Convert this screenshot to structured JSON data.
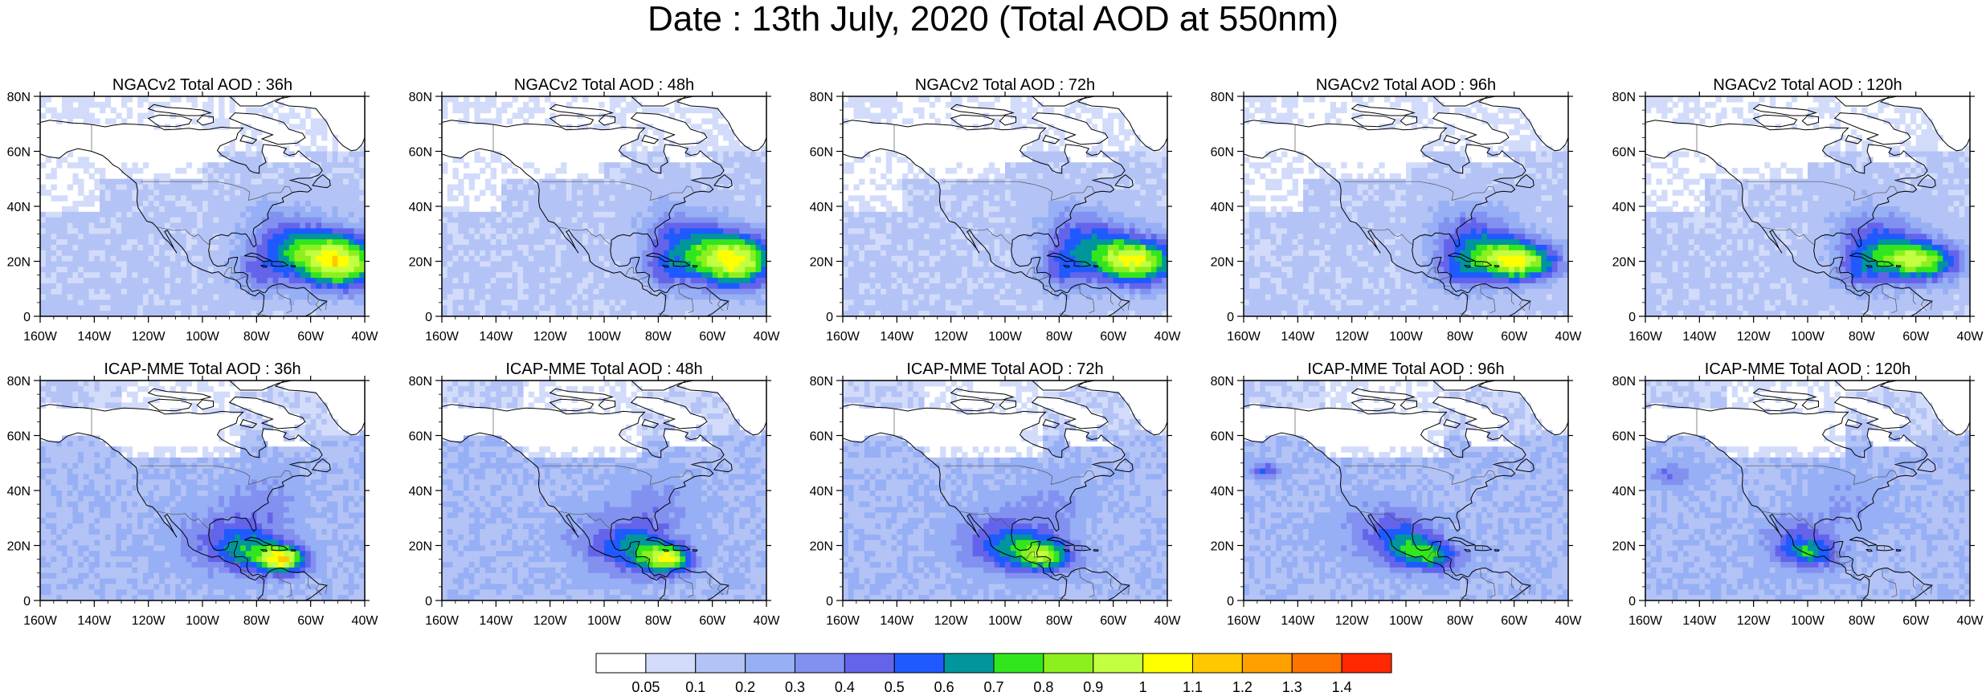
{
  "title": "Date : 13th July, 2020 (Total AOD at 550nm)",
  "axes": {
    "lon_ticks": [
      "160W",
      "140W",
      "120W",
      "100W",
      "80W",
      "60W",
      "40W"
    ],
    "lat_ticks": [
      "0",
      "20N",
      "40N",
      "60N",
      "80N"
    ],
    "lon_range": [
      -160,
      -40
    ],
    "lat_range": [
      0,
      80
    ]
  },
  "panels": [
    {
      "title": "NGACv2 Total AOD : 36h",
      "model": "NGACv2",
      "lead": "36h"
    },
    {
      "title": "NGACv2 Total AOD : 48h",
      "model": "NGACv2",
      "lead": "48h"
    },
    {
      "title": "NGACv2 Total AOD : 72h",
      "model": "NGACv2",
      "lead": "72h"
    },
    {
      "title": "NGACv2 Total AOD : 96h",
      "model": "NGACv2",
      "lead": "96h"
    },
    {
      "title": "NGACv2 Total AOD : 120h",
      "model": "NGACv2",
      "lead": "120h"
    },
    {
      "title": "ICAP-MME Total AOD : 36h",
      "model": "ICAP-MME",
      "lead": "36h"
    },
    {
      "title": "ICAP-MME Total AOD : 48h",
      "model": "ICAP-MME",
      "lead": "48h"
    },
    {
      "title": "ICAP-MME Total AOD : 72h",
      "model": "ICAP-MME",
      "lead": "72h"
    },
    {
      "title": "ICAP-MME Total AOD : 96h",
      "model": "ICAP-MME",
      "lead": "96h"
    },
    {
      "title": "ICAP-MME Total AOD : 120h",
      "model": "ICAP-MME",
      "lead": "120h"
    }
  ],
  "colorbar": {
    "labels": [
      "0.05",
      "0.1",
      "0.2",
      "0.3",
      "0.4",
      "0.5",
      "0.6",
      "0.7",
      "0.8",
      "0.9",
      "1",
      "1.1",
      "1.2",
      "1.3",
      "1.4"
    ],
    "colors": [
      "#ffffff",
      "#d2dcfa",
      "#b4c3f5",
      "#96aff5",
      "#8291f0",
      "#6464eb",
      "#1e5aff",
      "#00969b",
      "#32e61e",
      "#8cf01e",
      "#c3ff41",
      "#ffff00",
      "#ffc800",
      "#ffa000",
      "#ff7300",
      "#ff2800"
    ]
  }
}
